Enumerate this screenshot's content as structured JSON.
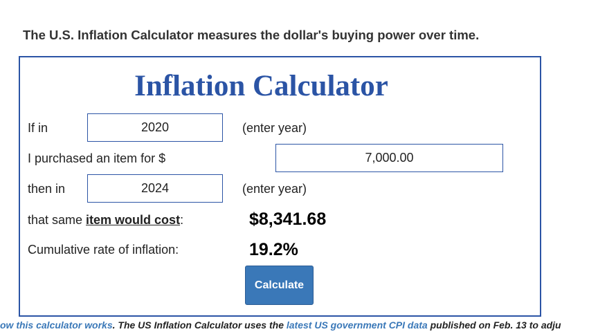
{
  "header": {
    "text": "The U.S. Inflation Calculator measures the dollar's buying power over time."
  },
  "calculator": {
    "title": "Inflation Calculator",
    "start_year": {
      "label": "If in",
      "value": "2020",
      "hint": "(enter year)"
    },
    "amount": {
      "label": "I purchased an item for $",
      "value": "7,000.00"
    },
    "end_year": {
      "label": "then in",
      "value": "2024",
      "hint": "(enter year)"
    },
    "cost": {
      "label_before": "that same ",
      "label_link": "item would cost",
      "label_after": ":",
      "value": "$8,341.68"
    },
    "rate": {
      "label": "Cumulative rate of inflation:",
      "value": "19.2%"
    },
    "button": "Calculate"
  },
  "footer": {
    "link_1": "ow this calculator works",
    "text_1": ". The US Inflation Calculator uses the ",
    "link_2": "latest US government CPI data",
    "text_2": " published on Feb. 13 to adju"
  }
}
